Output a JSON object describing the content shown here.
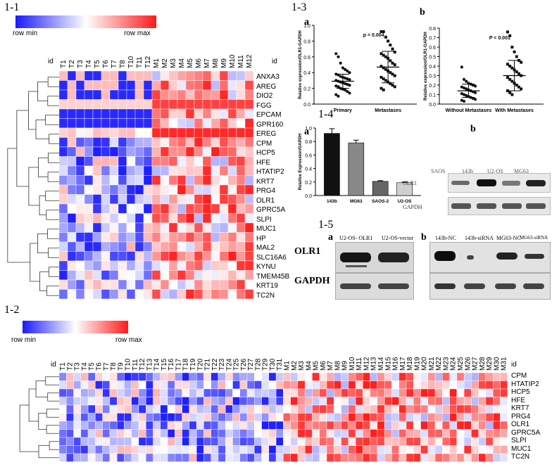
{
  "panel_1_1": {
    "label": "1-1",
    "scale": {
      "min": "row min",
      "max": "row max"
    },
    "id_label": "id",
    "columns": [
      "T1",
      "T2",
      "T3",
      "T4",
      "T5",
      "T6",
      "T7",
      "T8",
      "T10",
      "T11",
      "T12",
      "M1",
      "M2",
      "M3",
      "M4",
      "M5",
      "M6",
      "M7",
      "M8",
      "M9",
      "M10",
      "M11",
      "M12"
    ],
    "rows": [
      "ANXA3",
      "AREG",
      "DIO2",
      "FGG",
      "EPCAM",
      "GPR160",
      "EREG",
      "CPM",
      "HCP5",
      "HFE",
      "HTATIP2",
      "KRT7",
      "PRG4",
      "OLR1",
      "GPRC5A",
      "SLPI",
      "MUC1",
      "HP",
      "MAL2",
      "SLC16A6",
      "KYNU",
      "TMEM45B",
      "KRT19",
      "TC2N"
    ]
  },
  "panel_1_2": {
    "label": "1-2",
    "scale": {
      "min": "row min",
      "max": "row max"
    },
    "id_label": "id",
    "columns": [
      "T1",
      "T2",
      "T3",
      "T4",
      "T5",
      "T6",
      "T7",
      "T8",
      "T9",
      "T10",
      "T11",
      "T12",
      "T13",
      "T14",
      "T15",
      "T16",
      "T17",
      "T18",
      "T19",
      "T20",
      "T21",
      "T22",
      "T23",
      "T24",
      "T25",
      "T26",
      "T27",
      "T28",
      "T29",
      "T30",
      "T31",
      "M1",
      "M2",
      "M3",
      "M4",
      "M5",
      "M6",
      "M7",
      "M8",
      "M9",
      "M10",
      "M11",
      "M12",
      "M13",
      "M14",
      "M15",
      "M16",
      "M17",
      "M18",
      "M19",
      "M20",
      "M21",
      "M22",
      "M23",
      "M24",
      "M25",
      "M26",
      "M27",
      "M28",
      "M29",
      "M30",
      "M31"
    ],
    "rows": [
      "CPM",
      "HTATIP2",
      "HCP5",
      "HFE",
      "KRT7",
      "PRG4",
      "OLR1",
      "GPRC5A",
      "SLPI",
      "MUC1",
      "TC2N"
    ]
  },
  "panel_1_3": {
    "label": "1-3",
    "a": {
      "sub": "a",
      "ylabel": "Relative expression/OLR1-GAPDH",
      "p": "p = 0.004",
      "groups": [
        "Primary",
        "Metastases"
      ],
      "yticks": [
        "0.0",
        "0.2",
        "0.4",
        "0.6",
        "0.8",
        "1.0"
      ]
    },
    "b": {
      "sub": "b",
      "ylabel": "Relative expression/OLR1-GAPDH",
      "p": "P < 0.001",
      "groups": [
        "Without Metastases",
        "With Metastases"
      ],
      "yticks": [
        "0.0",
        "0.1",
        "0.2",
        "0.3",
        "0.4",
        "0.5",
        "0.6",
        "0.7",
        "0.8"
      ]
    }
  },
  "panel_1_4": {
    "label": "1-4",
    "a": {
      "sub": "a",
      "ylabel": "Relative Expression/GAPDH",
      "yticks": [
        "0.0",
        "0.2",
        "0.4",
        "0.6",
        "0.8",
        "1.0"
      ]
    },
    "b": {
      "sub": "b",
      "lanes": [
        "SAOS",
        "143b",
        "U2-OS",
        "MG63"
      ],
      "band_labels": [
        "OLR1",
        "GAPDH"
      ]
    }
  },
  "panel_1_5": {
    "label": "1-5",
    "a": {
      "sub": "a",
      "lanes": [
        "U2-OS- OLR1",
        "U2-OS-vector"
      ],
      "band_labels": [
        "OLR1",
        "GAPDH"
      ]
    },
    "b": {
      "sub": "b",
      "lanes": [
        "143b-NC",
        "143b-siRNA",
        "MG63-NC",
        "MG63-siRNA"
      ]
    }
  },
  "chart_data": [
    {
      "type": "scatter",
      "title": "1-3 a",
      "ylabel": "Relative expression/OLR1-GAPDH",
      "categories": [
        "Primary",
        "Metastases"
      ],
      "ylim": [
        0,
        1.0
      ],
      "series": [
        {
          "name": "Primary",
          "mean": 0.29,
          "sd": 0.09,
          "values": [
            0.64,
            0.6,
            0.52,
            0.46,
            0.44,
            0.42,
            0.4,
            0.38,
            0.37,
            0.35,
            0.34,
            0.33,
            0.32,
            0.31,
            0.3,
            0.29,
            0.28,
            0.27,
            0.26,
            0.25,
            0.24,
            0.23,
            0.22,
            0.2,
            0.19,
            0.18,
            0.16,
            0.14,
            0.12,
            0.1
          ]
        },
        {
          "name": "Metastases",
          "mean": 0.47,
          "sd": 0.2,
          "values": [
            0.92,
            0.92,
            0.85,
            0.8,
            0.75,
            0.7,
            0.66,
            0.64,
            0.62,
            0.6,
            0.58,
            0.55,
            0.52,
            0.5,
            0.48,
            0.46,
            0.44,
            0.42,
            0.4,
            0.38,
            0.36,
            0.34,
            0.32,
            0.3,
            0.28,
            0.26,
            0.24,
            0.22,
            0.2,
            0.18
          ]
        }
      ],
      "annotation": "p = 0.004"
    },
    {
      "type": "scatter",
      "title": "1-3 b",
      "ylabel": "Relative expression/OLR1-GAPDH",
      "categories": [
        "Without Metastases",
        "With Metastases"
      ],
      "ylim": [
        0,
        0.8
      ],
      "series": [
        {
          "name": "Without Metastases",
          "mean": 0.14,
          "sd": 0.07,
          "values": [
            0.39,
            0.26,
            0.24,
            0.22,
            0.21,
            0.2,
            0.19,
            0.18,
            0.17,
            0.16,
            0.15,
            0.14,
            0.13,
            0.12,
            0.11,
            0.1,
            0.09,
            0.08,
            0.07,
            0.06,
            0.05,
            0.04,
            0.03
          ]
        },
        {
          "name": "With Metastases",
          "mean": 0.3,
          "sd": 0.16,
          "values": [
            0.76,
            0.72,
            0.6,
            0.55,
            0.5,
            0.46,
            0.44,
            0.42,
            0.4,
            0.38,
            0.36,
            0.34,
            0.32,
            0.3,
            0.28,
            0.26,
            0.24,
            0.22,
            0.2,
            0.18,
            0.16,
            0.14,
            0.12,
            0.1
          ]
        }
      ],
      "annotation": "P < 0.001"
    },
    {
      "type": "bar",
      "title": "1-4 a",
      "ylabel": "Relative Expression/GAPDH",
      "categories": [
        "143b",
        "MG63",
        "SAOS-2",
        "U2-OS"
      ],
      "values": [
        0.92,
        0.78,
        0.21,
        0.19
      ],
      "errors": [
        0.07,
        0.04,
        0.01,
        0.01
      ],
      "colors": [
        "#111111",
        "#888888",
        "#666666",
        "#d0d0d0"
      ],
      "ylim": [
        0,
        1.0
      ]
    }
  ]
}
